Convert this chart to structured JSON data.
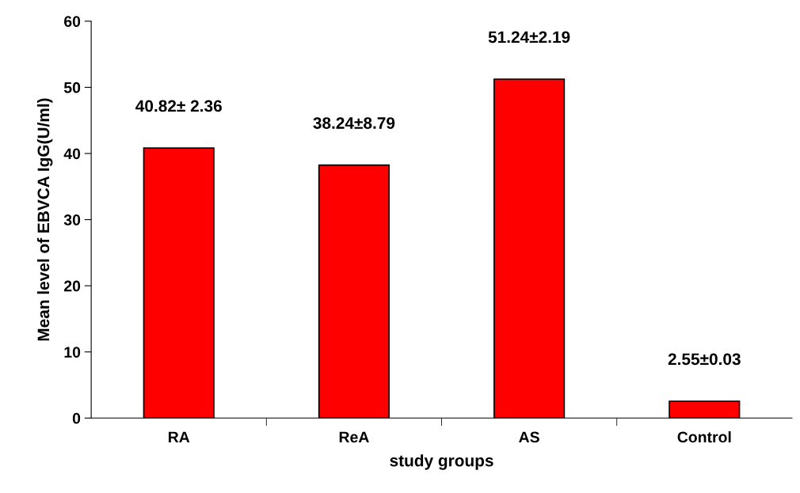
{
  "chart_data": {
    "type": "bar",
    "xlabel": "study groups",
    "ylabel": "Mean level of EBVCA IgG(U/ml)",
    "categories": [
      "RA",
      "ReA",
      "AS",
      "Control"
    ],
    "values": [
      40.82,
      38.24,
      51.24,
      2.55
    ],
    "value_labels": [
      "40.82± 2.36",
      "38.24±8.79",
      "51.24±2.19",
      "2.55±0.03"
    ],
    "color": "#ff0000",
    "ylim": [
      0,
      60
    ],
    "yticks": [
      0,
      10,
      20,
      30,
      40,
      50,
      60
    ],
    "grid": false,
    "legend": false
  }
}
